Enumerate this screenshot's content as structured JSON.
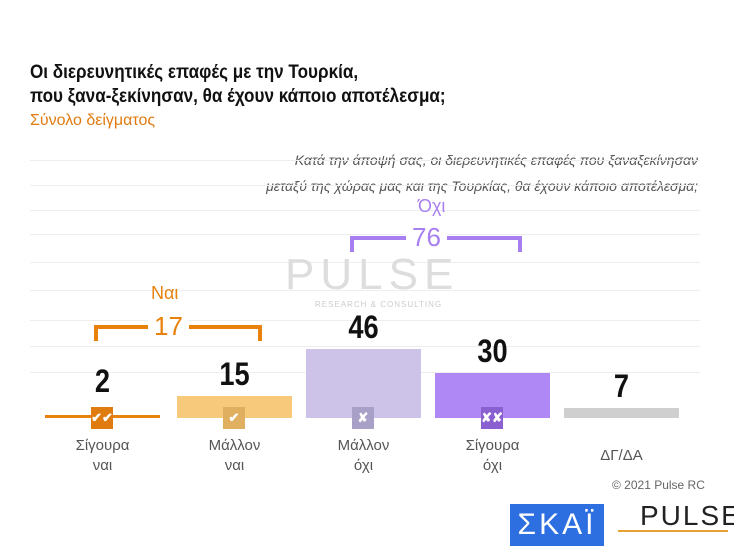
{
  "header": {
    "title_line1": "Οι διερευνητικές επαφές με την Τουρκία,",
    "title_line2": "που ξανα-ξεκίνησαν, θα έχουν κάποιο αποτέλεσμα;",
    "subtitle": "Σύνολο δείγματος"
  },
  "question": {
    "line1": "Κατά την άποψή σας, οι διερευνητικές επαφές που ξαναξεκίνησαν",
    "line2": "μεταξύ της χώρας μας και της Τουρκίας, θα έχουν κάποιο αποτέλεσμα;"
  },
  "chart_data": {
    "type": "bar",
    "categories": [
      "Σίγουρα ναι",
      "Μάλλον ναι",
      "Μάλλον όχι",
      "Σίγουρα όχι",
      "ΔΓ/ΔΑ"
    ],
    "values": [
      2,
      15,
      46,
      30,
      7
    ],
    "value_labels": [
      "2",
      "15",
      "46",
      "30",
      "7"
    ],
    "label_lines": [
      [
        "Σίγουρα",
        "ναι"
      ],
      [
        "Μάλλον",
        "ναι"
      ],
      [
        "Μάλλον",
        "όχι"
      ],
      [
        "Σίγουρα",
        "όχι"
      ],
      [
        "ΔΓ/ΔΑ",
        ""
      ]
    ],
    "colors": [
      "#e8820c",
      "#f7c97a",
      "#cdc3e8",
      "#b088f5",
      "#cfcfcf"
    ],
    "icons": [
      "✔✔",
      "✔",
      "✘",
      "✘✘",
      ""
    ],
    "groups": [
      {
        "title": "Ναι",
        "value": "17",
        "color": "#e8820c"
      },
      {
        "title": "Όχι",
        "value": "76",
        "color": "#a77ff0"
      }
    ]
  },
  "watermark": {
    "name": "PULSE",
    "tagline": "RESEARCH & CONSULTING"
  },
  "footer": {
    "copyright": "© 2021 Pulse RC",
    "logo_skai": "ΣΚΑΪ",
    "logo_pulse": "PULSE"
  }
}
